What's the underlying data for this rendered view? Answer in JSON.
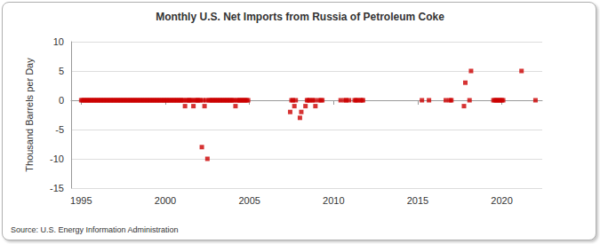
{
  "chart_data": {
    "type": "scatter",
    "title": "Monthly U.S. Net Imports from Russia of Petroleum Coke",
    "ylabel": "Thousand Barrels per Day",
    "source": "Source: U.S. Energy Information Administration",
    "color": "#cc0000",
    "marker": "square",
    "grid": true,
    "xlim": [
      1994.4,
      2022.4
    ],
    "xticks": [
      1995,
      2000,
      2005,
      2010,
      2015,
      2020
    ],
    "ylim": [
      -15,
      10
    ],
    "yticks": [
      -15,
      -10,
      -5,
      0,
      5,
      10
    ],
    "x": [
      1995.0,
      1995.08,
      1995.17,
      1995.25,
      1995.33,
      1995.42,
      1995.5,
      1995.58,
      1995.67,
      1995.75,
      1995.83,
      1995.92,
      1996.0,
      1996.08,
      1996.17,
      1996.25,
      1996.33,
      1996.42,
      1996.5,
      1996.58,
      1996.67,
      1996.75,
      1996.83,
      1996.92,
      1997.0,
      1997.08,
      1997.17,
      1997.25,
      1997.33,
      1997.42,
      1997.5,
      1997.58,
      1997.67,
      1997.75,
      1997.83,
      1997.92,
      1998.0,
      1998.08,
      1998.17,
      1998.25,
      1998.33,
      1998.42,
      1998.5,
      1998.58,
      1998.67,
      1998.75,
      1998.83,
      1998.92,
      1999.0,
      1999.08,
      1999.17,
      1999.25,
      1999.33,
      1999.42,
      1999.5,
      1999.58,
      1999.67,
      1999.75,
      1999.83,
      1999.92,
      2000.0,
      2000.08,
      2000.17,
      2000.25,
      2000.33,
      2000.42,
      2000.5,
      2000.58,
      2000.67,
      2000.75,
      2000.83,
      2000.92,
      2001.0,
      2001.08,
      2001.17,
      2001.25,
      2001.33,
      2001.42,
      2001.5,
      2001.58,
      2001.67,
      2001.75,
      2001.83,
      2001.92,
      2002.0,
      2002.08,
      2002.17,
      2002.25,
      2002.33,
      2002.42,
      2002.5,
      2002.58,
      2002.67,
      2002.75,
      2002.83,
      2002.92,
      2003.0,
      2003.08,
      2003.17,
      2003.25,
      2003.33,
      2003.42,
      2003.5,
      2003.58,
      2003.67,
      2003.75,
      2003.83,
      2003.92,
      2004.0,
      2004.08,
      2004.17,
      2004.25,
      2004.33,
      2004.42,
      2004.5,
      2004.58,
      2004.67,
      2004.75,
      2004.83,
      2004.92,
      2007.42,
      2007.5,
      2007.58,
      2007.67,
      2007.75,
      2008.0,
      2008.08,
      2008.33,
      2008.42,
      2008.5,
      2008.58,
      2008.75,
      2008.83,
      2008.92,
      2009.08,
      2009.25,
      2009.33,
      2010.42,
      2010.67,
      2010.75,
      2010.92,
      2011.25,
      2011.33,
      2011.42,
      2011.58,
      2011.67,
      2011.75,
      2015.25,
      2015.67,
      2016.67,
      2016.92,
      2017.0,
      2017.75,
      2017.83,
      2018.08,
      2018.17,
      2019.5,
      2019.58,
      2019.67,
      2019.75,
      2019.83,
      2019.92,
      2020.0,
      2020.08,
      2021.17,
      2022.0
    ],
    "values": [
      0,
      0,
      0,
      0,
      0,
      0,
      0,
      0,
      0,
      0,
      0,
      0,
      0,
      0,
      0,
      0,
      0,
      0,
      0,
      0,
      0,
      0,
      0,
      0,
      0,
      0,
      0,
      0,
      0,
      0,
      0,
      0,
      0,
      0,
      0,
      0,
      0,
      0,
      0,
      0,
      0,
      0,
      0,
      0,
      0,
      0,
      0,
      0,
      0,
      0,
      0,
      0,
      0,
      0,
      0,
      0,
      0,
      0,
      0,
      0,
      0,
      0,
      0,
      0,
      0,
      0,
      0,
      0,
      0,
      0,
      0,
      0,
      0,
      0,
      -1,
      0,
      0,
      0,
      0,
      0,
      -1,
      0,
      0,
      0,
      0,
      0,
      -8,
      0,
      -1,
      0,
      -10,
      0,
      0,
      0,
      0,
      0,
      0,
      0,
      0,
      0,
      0,
      0,
      0,
      0,
      0,
      0,
      0,
      0,
      0,
      0,
      -1,
      0,
      0,
      0,
      0,
      0,
      0,
      0,
      0,
      0,
      -2,
      0,
      0,
      -1,
      0,
      -3,
      -2,
      -1,
      0,
      0,
      0,
      0,
      0,
      -1,
      0,
      0,
      0,
      0,
      0,
      0,
      0,
      0,
      0,
      0,
      0,
      0,
      0,
      0,
      0,
      0,
      0,
      0,
      -1,
      3,
      0,
      5,
      0,
      0,
      0,
      0,
      0,
      0,
      0,
      0,
      5,
      0
    ]
  }
}
